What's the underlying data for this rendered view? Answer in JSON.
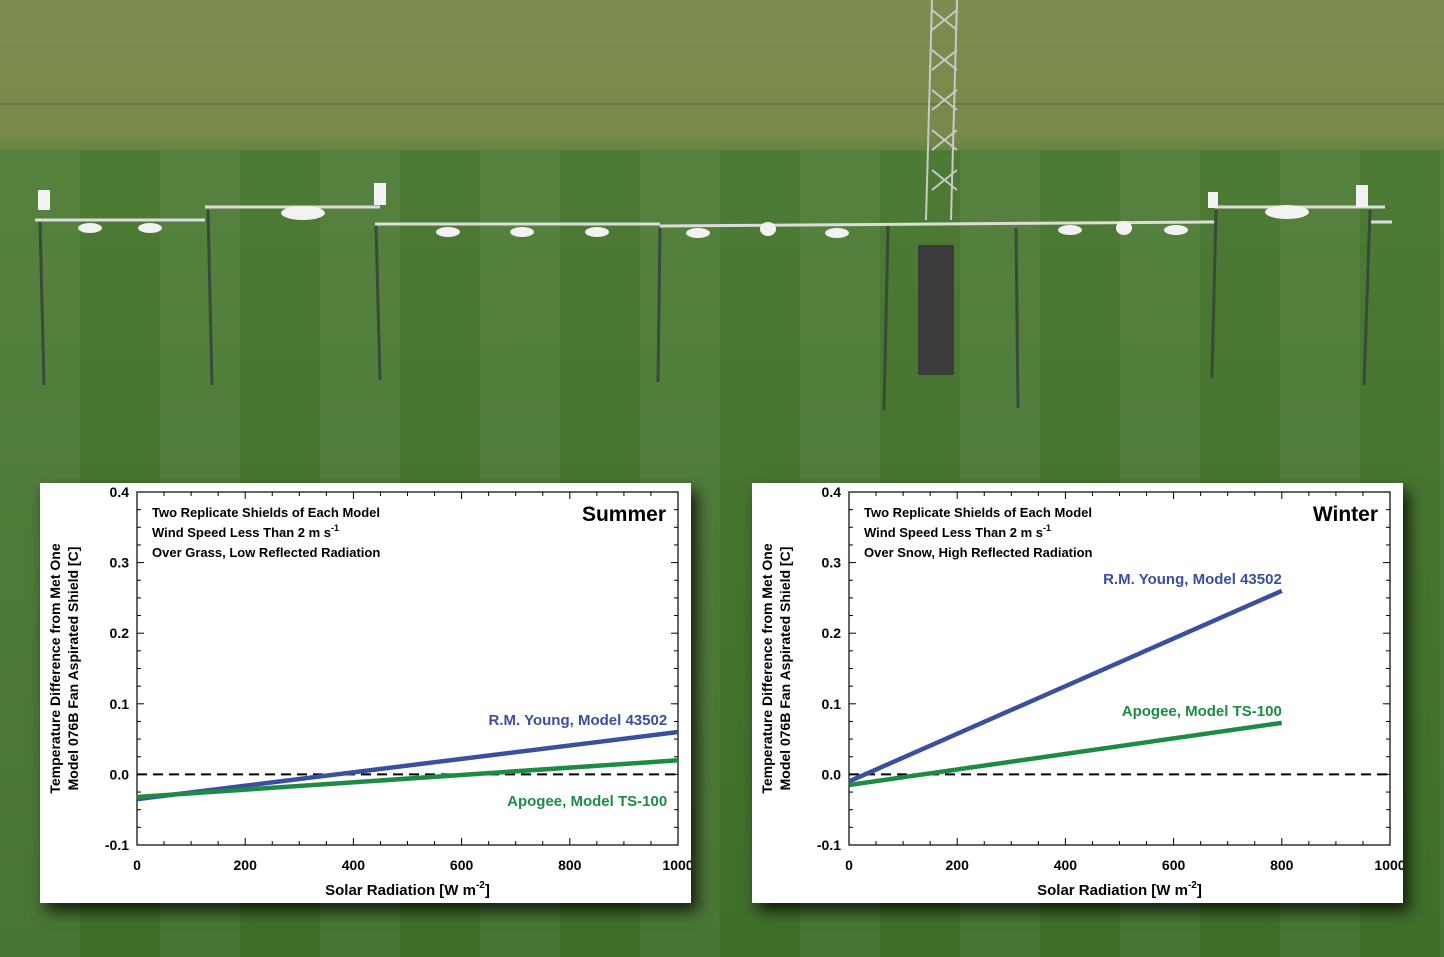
{
  "chart_data": [
    {
      "type": "line",
      "title": "Summer",
      "annotations": [
        "Two Replicate Shields of Each Model",
        "Wind Speed Less Than 2 m s",
        "Over Grass, Low Reflected Radiation"
      ],
      "wind_unit_sup": "-1",
      "xlabel": "Solar Radiation [W m",
      "xlabel_sup": "-2",
      "xlabel_end": "]",
      "ylabel": [
        "Temperature Difference from Met One",
        "Model 076B Fan Aspirated Shield [C]"
      ],
      "xlim": [
        0,
        1000
      ],
      "ylim": [
        -0.1,
        0.4
      ],
      "x_ticks": [
        "0",
        "200",
        "400",
        "600",
        "800",
        "1000"
      ],
      "y_ticks": [
        "-0.1",
        "0.0",
        "0.1",
        "0.2",
        "0.3",
        "0.4"
      ],
      "reference_line": 0.0,
      "series": [
        {
          "name": "R.M. Young, Model 43502",
          "color": "#3a4fa0",
          "x": [
            0,
            1000
          ],
          "y": [
            -0.035,
            0.06
          ],
          "label_near_x": 980,
          "label_near_y": 0.07,
          "label_side": "above"
        },
        {
          "name": "Apogee, Model TS-100",
          "color": "#1e8b44",
          "x": [
            0,
            1000
          ],
          "y": [
            -0.032,
            0.02
          ],
          "label_near_x": 980,
          "label_near_y": -0.028,
          "label_side": "below"
        }
      ]
    },
    {
      "type": "line",
      "title": "Winter",
      "annotations": [
        "Two Replicate Shields of Each Model",
        "Wind Speed Less Than 2 m s",
        "Over Snow, High Reflected Radiation"
      ],
      "wind_unit_sup": "-1",
      "xlabel": "Solar Radiation [W m",
      "xlabel_sup": "-2",
      "xlabel_end": "]",
      "ylabel": [
        "Temperature Difference from Met One",
        "Model 076B Fan Aspirated Shield [C]"
      ],
      "xlim": [
        0,
        1000
      ],
      "ylim": [
        -0.1,
        0.4
      ],
      "x_ticks": [
        "0",
        "200",
        "400",
        "600",
        "800",
        "1000"
      ],
      "y_ticks": [
        "-0.1",
        "0.0",
        "0.1",
        "0.2",
        "0.3",
        "0.4"
      ],
      "reference_line": 0.0,
      "series": [
        {
          "name": "R.M. Young, Model 43502",
          "color": "#3a4fa0",
          "x": [
            0,
            800
          ],
          "y": [
            -0.01,
            0.26
          ],
          "label_near_x": 800,
          "label_near_y": 0.27,
          "label_side": "above"
        },
        {
          "name": "Apogee, Model TS-100",
          "color": "#1e8b44",
          "x": [
            0,
            800
          ],
          "y": [
            -0.015,
            0.073
          ],
          "label_near_x": 800,
          "label_near_y": 0.083,
          "label_side": "above"
        }
      ]
    }
  ]
}
